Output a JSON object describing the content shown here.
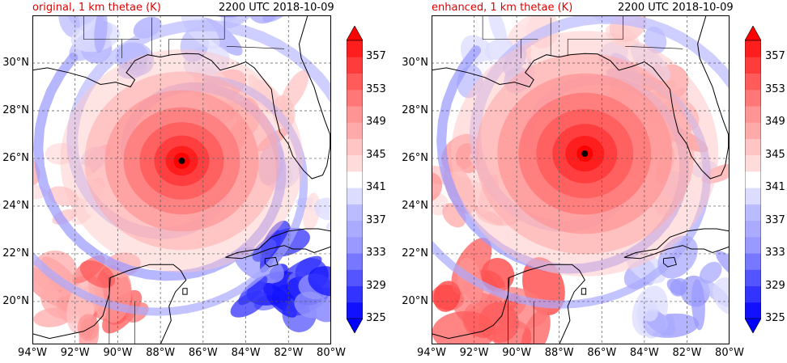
{
  "panels": [
    {
      "id": "original",
      "title": "original, 1 km thetae (K)",
      "time": "2200 UTC 2018-10-09",
      "storm_center": {
        "lon": -87.0,
        "lat": 25.9
      },
      "eye_radius_deg": 0.6,
      "core_sat": 1.0,
      "cb_label": "colorbar-original"
    },
    {
      "id": "enhanced",
      "title": "enhanced, 1 km thetae (K)",
      "time": "2200 UTC 2018-10-09",
      "storm_center": {
        "lon": -86.8,
        "lat": 26.2
      },
      "eye_radius_deg": 0.6,
      "core_sat": 1.0,
      "cb_label": "colorbar-enhanced"
    }
  ],
  "map": {
    "lon_range": [
      -94,
      -80
    ],
    "lat_range": [
      18.2,
      32
    ],
    "lat_ticks": [
      "20°N",
      "22°N",
      "24°N",
      "26°N",
      "28°N",
      "30°N"
    ],
    "lat_values": [
      20,
      22,
      24,
      26,
      28,
      30
    ],
    "lon_ticks": [
      "94°W",
      "92°W",
      "90°W",
      "88°W",
      "86°W",
      "84°W",
      "82°W",
      "80°W"
    ],
    "lon_values": [
      -94,
      -92,
      -90,
      -88,
      -86,
      -84,
      -82,
      -80
    ]
  },
  "colorbar": {
    "tick_labels": [
      "325",
      "329",
      "333",
      "337",
      "341",
      "345",
      "349",
      "353",
      "357"
    ],
    "tick_values": [
      325,
      329,
      333,
      337,
      341,
      345,
      349,
      353,
      357
    ],
    "levels": [
      325,
      327,
      329,
      331,
      333,
      335,
      337,
      339,
      341,
      343,
      345,
      347,
      349,
      351,
      353,
      355,
      357,
      359
    ],
    "colors": [
      "#1111ff",
      "#3333ff",
      "#5555ff",
      "#7777ff",
      "#9999ff",
      "#aaaaff",
      "#bbbbff",
      "#dcdcff",
      "#ffffff",
      "#ffdcdc",
      "#ffc4c4",
      "#ffaaaa",
      "#ff9494",
      "#ff7777",
      "#ff5b5b",
      "#ff3c3c",
      "#ff1e1e"
    ],
    "min_color": "#0000ff",
    "max_color": "#ff0000"
  }
}
